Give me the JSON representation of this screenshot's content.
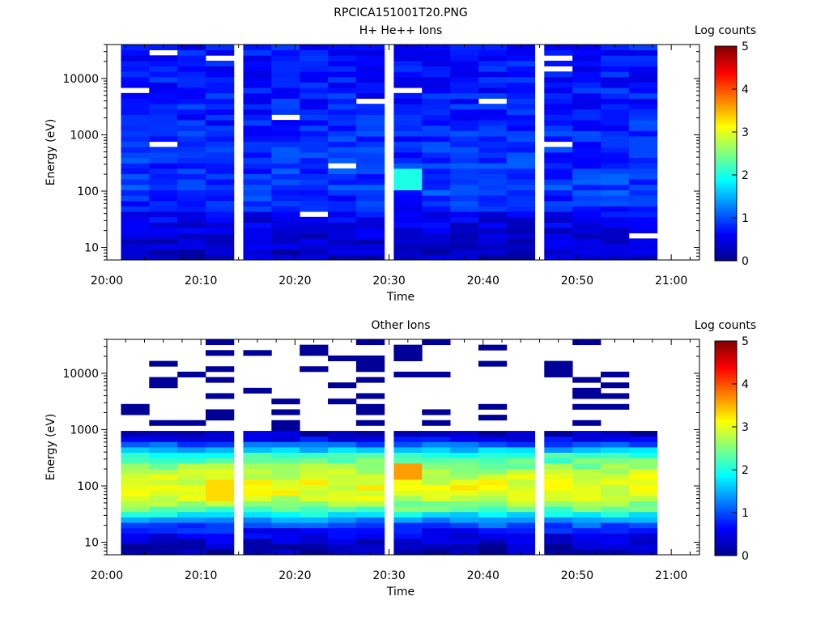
{
  "figure_title": "RPCICA151001T20.PNG",
  "colormap": [
    "#00008f",
    "#0000ff",
    "#0080ff",
    "#00ffff",
    "#80ff80",
    "#ffff00",
    "#ff8000",
    "#ff0000",
    "#800000"
  ],
  "chart_data": [
    {
      "type": "heatmap",
      "title": "H+ He++ Ions",
      "xlabel": "Time",
      "ylabel": "Energy (eV)",
      "colorbar_label": "Log counts",
      "colorbar_range": [
        0,
        5
      ],
      "colorbar_ticks": [
        "0",
        "1",
        "2",
        "3",
        "4",
        "5"
      ],
      "x_ticks": [
        "20:00",
        "20:10",
        "20:20",
        "20:30",
        "20:40",
        "20:50",
        "21:00"
      ],
      "y_ticks": [
        "10",
        "100",
        "1000",
        "10000"
      ],
      "y_scale": "log",
      "ylim": [
        6,
        40000
      ],
      "time_range": [
        "20:00",
        "21:03"
      ],
      "time_bins": [
        "20:03",
        "20:06",
        "20:09",
        "20:12",
        "20:16",
        "20:19",
        "20:22",
        "20:25",
        "20:28",
        "20:32",
        "20:35",
        "20:38",
        "20:41",
        "20:44",
        "20:48",
        "20:51",
        "20:54",
        "20:57"
      ],
      "energy_profile": [
        {
          "energy_eV": 8,
          "log_counts": 0.3
        },
        {
          "energy_eV": 15,
          "log_counts": 0.4
        },
        {
          "energy_eV": 30,
          "log_counts": 0.5
        },
        {
          "energy_eV": 60,
          "log_counts": 0.8
        },
        {
          "energy_eV": 100,
          "log_counts": 0.9
        },
        {
          "energy_eV": 300,
          "log_counts": 0.85
        },
        {
          "energy_eV": 1000,
          "log_counts": 0.8
        },
        {
          "energy_eV": 3000,
          "log_counts": 0.75
        },
        {
          "energy_eV": 10000,
          "log_counts": 0.7
        },
        {
          "energy_eV": 30000,
          "log_counts": 0.7
        }
      ],
      "notable_cells": [
        {
          "time": "20:32",
          "energy_eV": 170,
          "log_counts": 2.0
        }
      ]
    },
    {
      "type": "heatmap",
      "title": "Other Ions",
      "xlabel": "Time",
      "ylabel": "Energy (eV)",
      "colorbar_label": "Log counts",
      "colorbar_range": [
        0,
        5
      ],
      "colorbar_ticks": [
        "0",
        "1",
        "2",
        "3",
        "4",
        "5"
      ],
      "x_ticks": [
        "20:00",
        "20:10",
        "20:20",
        "20:30",
        "20:40",
        "20:50",
        "21:00"
      ],
      "y_ticks": [
        "10",
        "100",
        "1000",
        "10000"
      ],
      "y_scale": "log",
      "ylim": [
        6,
        40000
      ],
      "time_range": [
        "20:00",
        "21:03"
      ],
      "time_bins": [
        "20:03",
        "20:06",
        "20:09",
        "20:12",
        "20:16",
        "20:19",
        "20:22",
        "20:25",
        "20:28",
        "20:32",
        "20:35",
        "20:38",
        "20:41",
        "20:44",
        "20:48",
        "20:51",
        "20:54",
        "20:57"
      ],
      "energy_profile": [
        {
          "energy_eV": 8,
          "log_counts": 0.2
        },
        {
          "energy_eV": 15,
          "log_counts": 0.6
        },
        {
          "energy_eV": 25,
          "log_counts": 1.3
        },
        {
          "energy_eV": 40,
          "log_counts": 2.4
        },
        {
          "energy_eV": 70,
          "log_counts": 3.0
        },
        {
          "energy_eV": 120,
          "log_counts": 3.0
        },
        {
          "energy_eV": 200,
          "log_counts": 2.7
        },
        {
          "energy_eV": 350,
          "log_counts": 2.1
        },
        {
          "energy_eV": 600,
          "log_counts": 0.8
        },
        {
          "energy_eV": 1000,
          "log_counts": 0.0
        }
      ],
      "notable_cells": [
        {
          "time": "20:32",
          "energy_eV": 180,
          "log_counts": 3.6
        },
        {
          "time": "20:12",
          "energy_eV": 90,
          "log_counts": 3.3
        }
      ]
    }
  ]
}
